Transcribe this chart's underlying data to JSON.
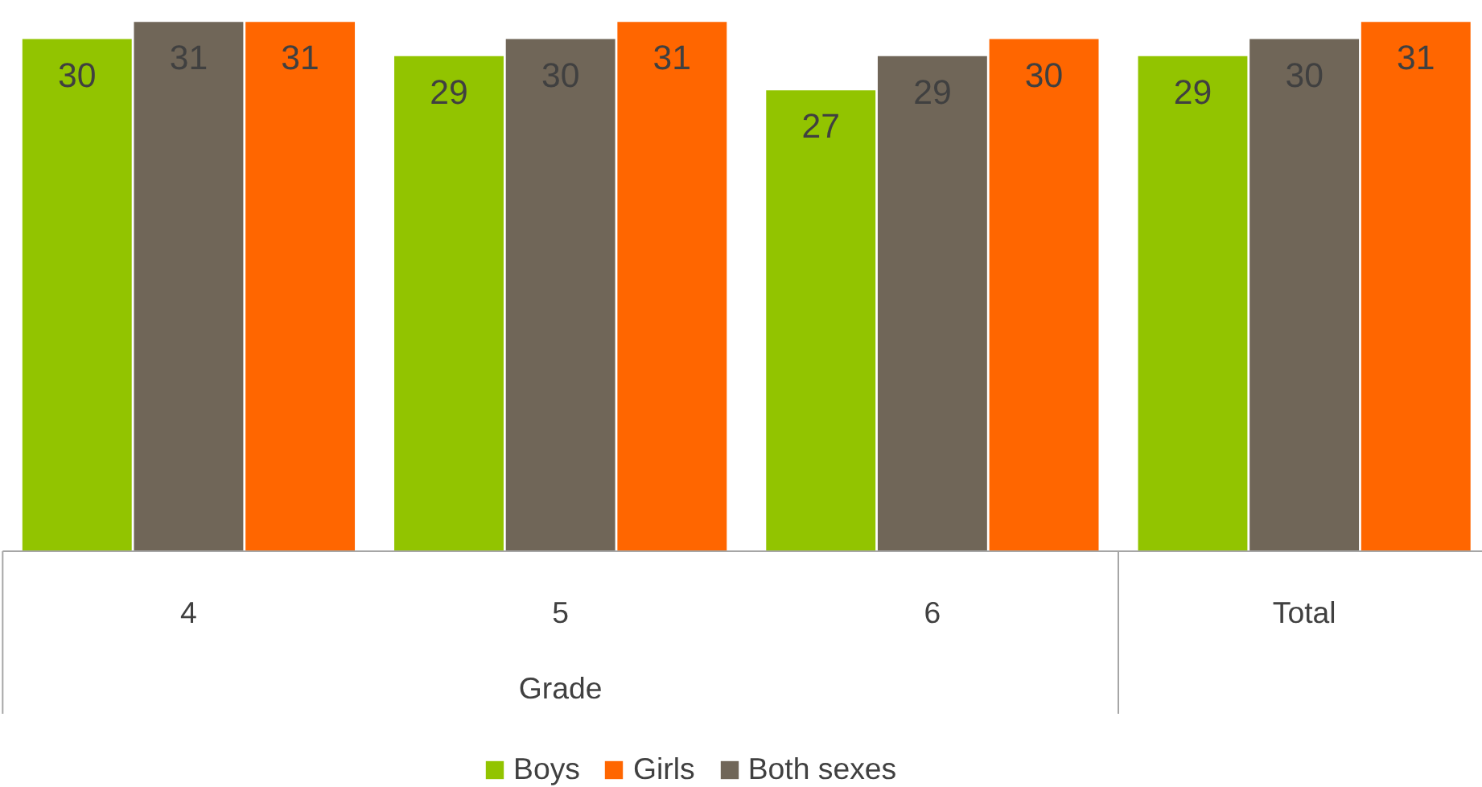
{
  "chart_data": {
    "type": "bar",
    "categories": [
      "4",
      "5",
      "6",
      "Total"
    ],
    "series": [
      {
        "name": "Boys",
        "color": "#92c400",
        "values": [
          30,
          29,
          27,
          29
        ]
      },
      {
        "name": "Girls",
        "color": "#ff6600",
        "values": [
          31,
          31,
          30,
          31
        ]
      },
      {
        "name": "Both sexes",
        "color": "#706658",
        "values": [
          31,
          30,
          29,
          30
        ]
      }
    ],
    "data_labels": true,
    "legend": "bottom",
    "grid": false,
    "annotations": [
      "Grade"
    ]
  }
}
